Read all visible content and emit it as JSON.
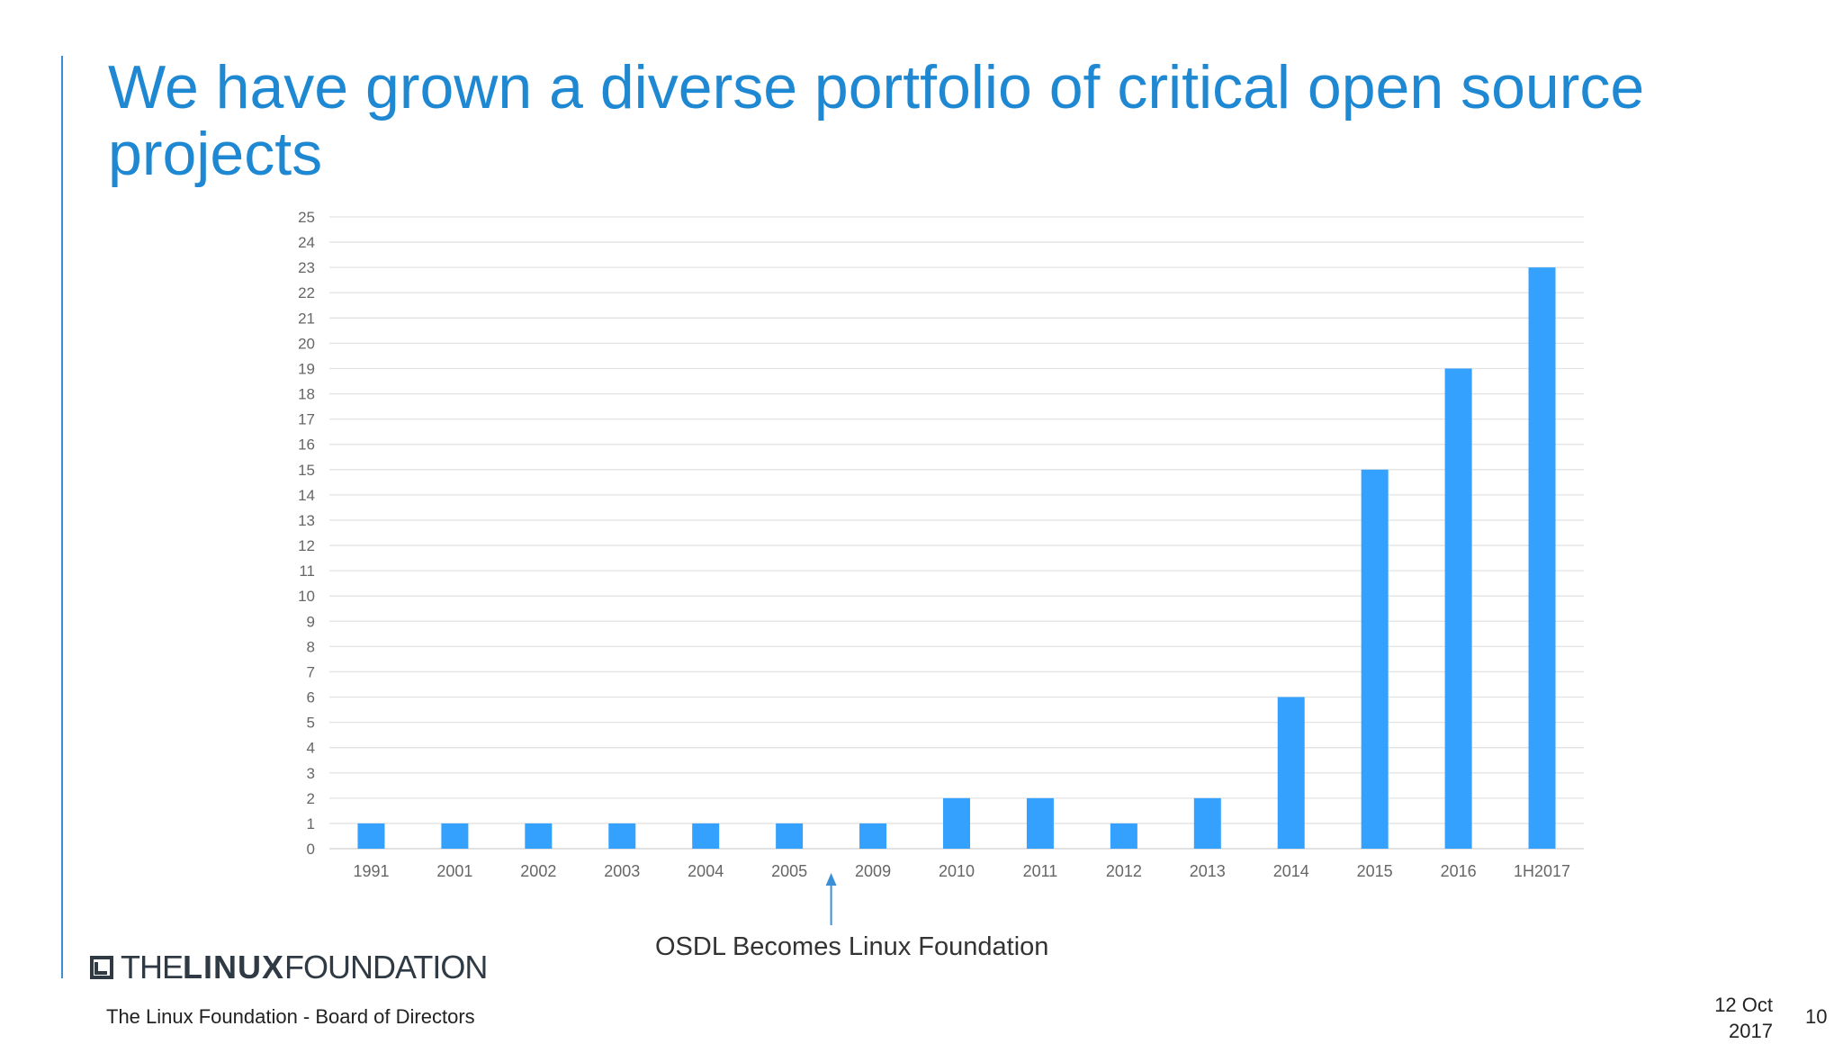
{
  "slide": {
    "title": "We have grown a diverse portfolio of critical open source projects",
    "annotation": "OSDL Becomes Linux Foundation",
    "footer_left": "The Linux Foundation - Board of Directors",
    "footer_date_line1": "12 Oct",
    "footer_date_line2": "2017",
    "page_number": "10"
  },
  "logo": {
    "the": "THE",
    "linux": "LINUX",
    "foundation": "FOUNDATION",
    "icon": "linux-foundation-bracket-icon"
  },
  "colors": {
    "title": "#1e88d2",
    "bar": "#33a1fd",
    "grid": "#e3e3e3",
    "axis_text": "#666666",
    "arrow": "#3b8fd6"
  },
  "chart_data": {
    "type": "bar",
    "title": "",
    "xlabel": "",
    "ylabel": "",
    "categories": [
      "1991",
      "2001",
      "2002",
      "2003",
      "2004",
      "2005",
      "2009",
      "2010",
      "2011",
      "2012",
      "2013",
      "2014",
      "2015",
      "2016",
      "1H2017"
    ],
    "values": [
      1,
      1,
      1,
      1,
      1,
      1,
      1,
      2,
      2,
      1,
      2,
      6,
      15,
      19,
      23
    ],
    "ylim": [
      0,
      25
    ],
    "yticks": [
      0,
      1,
      2,
      3,
      4,
      5,
      6,
      7,
      8,
      9,
      10,
      11,
      12,
      13,
      14,
      15,
      16,
      17,
      18,
      19,
      20,
      21,
      22,
      23,
      24,
      25
    ],
    "grid": true,
    "legend": "none",
    "annotation_after_category": "2005"
  }
}
